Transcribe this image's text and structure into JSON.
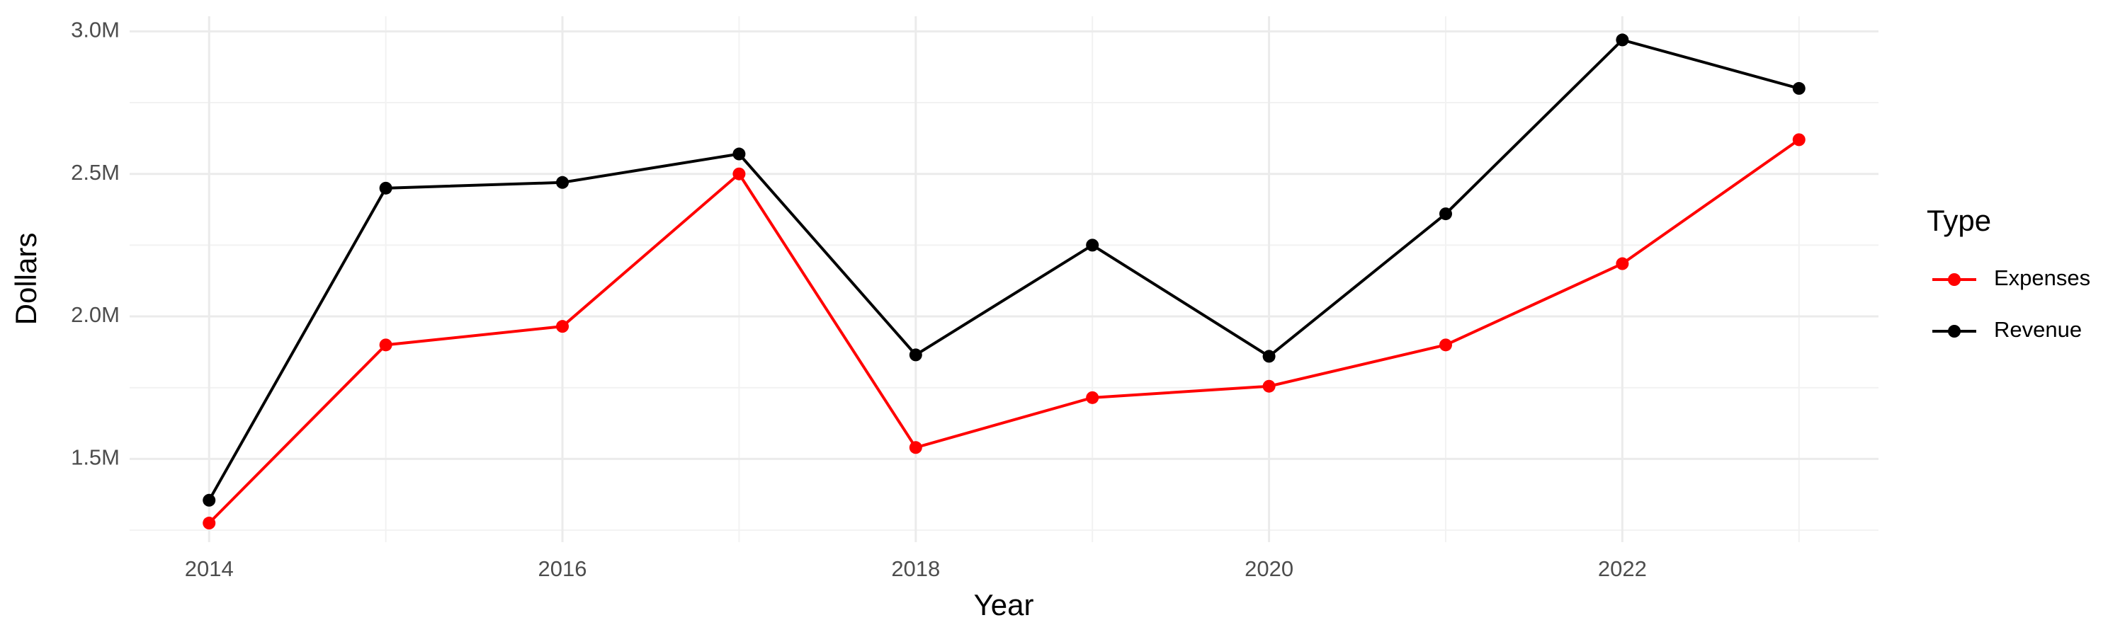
{
  "chart_data": {
    "type": "line",
    "x_label": "Year",
    "y_label": "Dollars",
    "legend_title": "Type",
    "legend": "right",
    "grid": true,
    "x": [
      2014,
      2015,
      2016,
      2017,
      2018,
      2019,
      2020,
      2021,
      2022,
      2023
    ],
    "series": [
      {
        "name": "Expenses",
        "color": "#ff0000",
        "values": [
          1275000,
          1900000,
          1965000,
          2500000,
          1540000,
          1715000,
          1755000,
          1900000,
          2185000,
          2620000
        ]
      },
      {
        "name": "Revenue",
        "color": "#000000",
        "values": [
          1355000,
          2450000,
          2470000,
          2570000,
          1865000,
          2250000,
          1860000,
          2360000,
          2970000,
          2800000
        ]
      }
    ],
    "xlim": [
      2013.55,
      2023.45
    ],
    "xticks": [
      2014,
      2016,
      2018,
      2020,
      2022
    ],
    "ylim": [
      1208000,
      3053000
    ],
    "yticks": [
      {
        "value": 1500000,
        "label": "1.5M"
      },
      {
        "value": 2000000,
        "label": "2.0M"
      },
      {
        "value": 2500000,
        "label": "2.5M"
      },
      {
        "value": 3000000,
        "label": "3.0M"
      }
    ]
  }
}
